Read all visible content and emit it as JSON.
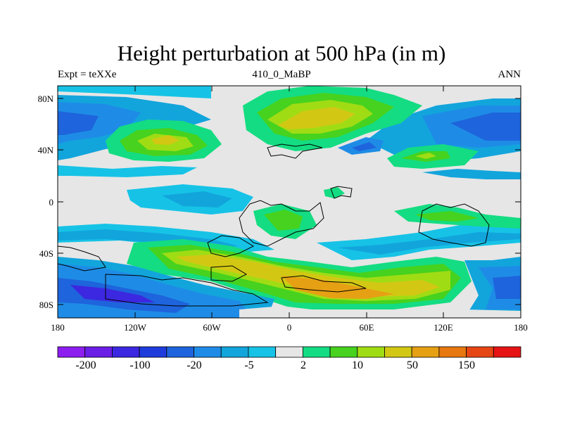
{
  "title": "Height perturbation at 500 hPa (in m)",
  "subtitle_left": "Expt = teXXe",
  "subtitle_center": "410_0_MaBP",
  "subtitle_right": "ANN",
  "map": {
    "projection": "cylindrical-equidistant",
    "lon_range": [
      -180,
      180
    ],
    "lat_range": [
      -90,
      90
    ],
    "background_color": "#e6e6e6"
  },
  "lat_ticks": [
    "80N",
    "40N",
    "0",
    "40S",
    "80S"
  ],
  "lon_ticks": [
    "180",
    "120W",
    "60W",
    "0",
    "60E",
    "120E",
    "180"
  ],
  "colorbar": {
    "colors": [
      "#8c1ef0",
      "#6a1ee6",
      "#3c28e0",
      "#1e3cdc",
      "#1e64dc",
      "#1e8ce6",
      "#12a5dc",
      "#16c3e6",
      "#e6e6e6",
      "#14dc82",
      "#46d21e",
      "#a0dc14",
      "#d2c814",
      "#e6a014",
      "#e6780f",
      "#e64614",
      "#e61414"
    ],
    "labels": [
      "-200",
      "-100",
      "-20",
      "-5",
      "2",
      "10",
      "50",
      "150"
    ]
  }
}
